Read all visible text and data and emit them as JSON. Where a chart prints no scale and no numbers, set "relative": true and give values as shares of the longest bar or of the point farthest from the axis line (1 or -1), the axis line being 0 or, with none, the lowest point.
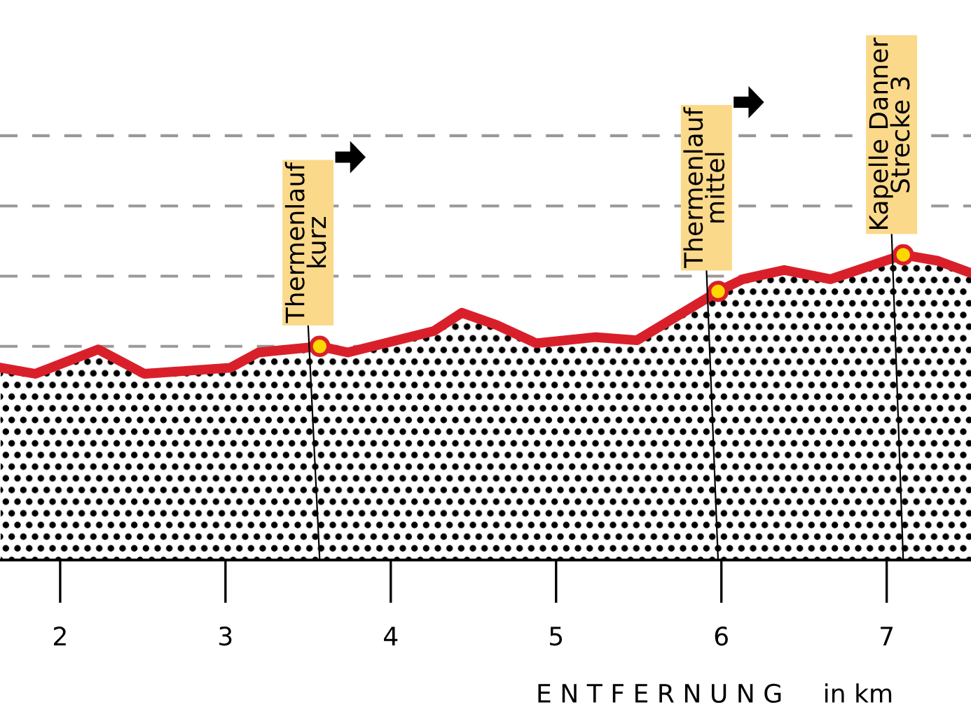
{
  "chart_data": {
    "type": "area",
    "relative": true,
    "xlabel": "E N T F E R N U N G     in km",
    "x": [
      1.64,
      1.85,
      2.23,
      2.51,
      3.03,
      3.2,
      3.57,
      3.74,
      4.26,
      4.43,
      4.64,
      4.88,
      5.24,
      5.49,
      5.98,
      6.13,
      6.38,
      6.66,
      7.1,
      7.31,
      7.51
    ],
    "series": [
      {
        "color": "#d9202a",
        "values": [
          0.63,
          0.61,
          0.69,
          0.61,
          0.63,
          0.68,
          0.7,
          0.68,
          0.75,
          0.81,
          0.77,
          0.71,
          0.73,
          0.72,
          0.88,
          0.92,
          0.95,
          0.92,
          1.0,
          0.98,
          0.94
        ]
      }
    ],
    "xlim": [
      1.636,
      7.51
    ],
    "xticks": [
      2,
      3,
      4,
      5,
      6,
      7
    ],
    "ref_lines": [
      {
        "axis": "y",
        "value": 0.23,
        "color": "#aaaaaa",
        "line_style": "dashed"
      },
      {
        "axis": "y",
        "value": 0.46,
        "color": "#aaaaaa",
        "line_style": "dashed"
      },
      {
        "axis": "y",
        "value": 0.7,
        "color": "#999999",
        "line_style": "dashed"
      },
      {
        "axis": "y",
        "value": 0.93,
        "color": "#999999",
        "line_style": "dashed"
      },
      {
        "axis": "y",
        "value": 1.16,
        "color": "#999999",
        "line_style": "dashed"
      },
      {
        "axis": "y",
        "value": 1.39,
        "color": "#999999",
        "line_style": "dashed"
      }
    ],
    "annotations": [
      {
        "text": "Thermenlauf\nkurz",
        "x": 3.57,
        "y": 0.7
      },
      {
        "text": "Thermenlauf\nmittel",
        "x": 5.98,
        "y": 0.88
      },
      {
        "text": "Kapelle Danner\nStrecke 3",
        "x": 7.1,
        "y": 1.0
      }
    ],
    "marker": "none",
    "line_style": "solid",
    "grid": false,
    "legend": false
  }
}
